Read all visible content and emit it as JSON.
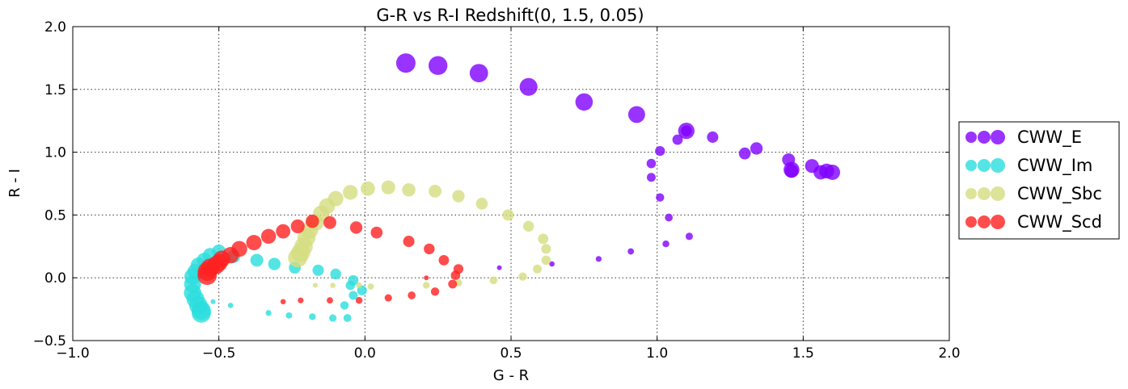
{
  "chart_data": {
    "type": "scatter",
    "title": "G-R vs R-I    Redshift(0, 1.5, 0.05)",
    "xlabel": "G - R",
    "ylabel": "R - I",
    "xlim": [
      -1.0,
      2.0
    ],
    "ylim": [
      -0.5,
      2.0
    ],
    "xticks": [
      -1.0,
      -0.5,
      0.0,
      0.5,
      1.0,
      1.5,
      2.0
    ],
    "yticks": [
      -0.5,
      0.0,
      0.5,
      1.0,
      1.5,
      2.0
    ],
    "xtick_labels": [
      "−1.0",
      "−0.5",
      "0.0",
      "0.5",
      "1.0",
      "1.5",
      "2.0"
    ],
    "ytick_labels": [
      "−0.5",
      "0.0",
      "0.5",
      "1.0",
      "1.5",
      "2.0"
    ],
    "grid": true,
    "legend_position": "outside-right",
    "marker_size_encodes": "redshift (0 to 1.5, step 0.05)",
    "redshift": [
      0.0,
      0.05,
      0.1,
      0.15,
      0.2,
      0.25,
      0.3,
      0.35,
      0.4,
      0.45,
      0.5,
      0.55,
      0.6,
      0.65,
      0.7,
      0.75,
      0.8,
      0.85,
      0.9,
      0.95,
      1.0,
      1.05,
      1.1,
      1.15,
      1.2,
      1.25,
      1.3,
      1.35,
      1.4,
      1.45
    ],
    "series": [
      {
        "name": "CWW_E",
        "color": "#8000ff",
        "x": [
          0.46,
          0.64,
          0.8,
          0.91,
          1.03,
          1.11,
          1.04,
          1.01,
          0.98,
          0.98,
          1.01,
          1.07,
          1.1,
          1.19,
          1.3,
          1.34,
          1.45,
          1.46,
          1.53,
          1.56,
          1.58,
          1.6,
          1.46,
          1.1,
          0.93,
          0.75,
          0.56,
          0.39,
          0.25,
          0.14
        ],
        "y": [
          0.08,
          0.11,
          0.15,
          0.21,
          0.27,
          0.33,
          0.48,
          0.64,
          0.8,
          0.91,
          1.01,
          1.1,
          1.17,
          1.12,
          0.99,
          1.03,
          0.94,
          0.85,
          0.89,
          0.84,
          0.85,
          0.84,
          0.86,
          1.17,
          1.3,
          1.4,
          1.52,
          1.63,
          1.69,
          1.71
        ]
      },
      {
        "name": "CWW_Im",
        "color": "#2adddd",
        "x": [
          -0.52,
          -0.46,
          -0.33,
          -0.26,
          -0.18,
          -0.11,
          -0.06,
          -0.07,
          -0.04,
          -0.05,
          -0.01,
          -0.04,
          -0.1,
          -0.16,
          -0.24,
          -0.31,
          -0.37,
          -0.45,
          -0.5,
          -0.53,
          -0.55,
          -0.57,
          -0.58,
          -0.59,
          -0.59,
          -0.59,
          -0.58,
          -0.57,
          -0.56,
          -0.56
        ],
        "y": [
          -0.19,
          -0.22,
          -0.28,
          -0.3,
          -0.31,
          -0.32,
          -0.32,
          -0.22,
          -0.14,
          -0.06,
          -0.1,
          -0.02,
          0.03,
          0.06,
          0.08,
          0.11,
          0.14,
          0.17,
          0.21,
          0.18,
          0.14,
          0.1,
          0.05,
          0.01,
          -0.05,
          -0.12,
          -0.17,
          -0.22,
          -0.26,
          -0.28
        ]
      },
      {
        "name": "CWW_Sbc",
        "color": "#d4dd80",
        "x": [
          -0.17,
          -0.11,
          -0.02,
          0.02,
          0.21,
          0.32,
          0.44,
          0.54,
          0.59,
          0.62,
          0.62,
          0.61,
          0.56,
          0.49,
          0.4,
          0.32,
          0.24,
          0.15,
          0.08,
          0.01,
          -0.05,
          -0.1,
          -0.13,
          -0.15,
          -0.17,
          -0.19,
          -0.2,
          -0.21,
          -0.22,
          -0.23
        ],
        "y": [
          -0.06,
          -0.06,
          -0.06,
          -0.07,
          -0.06,
          -0.04,
          -0.02,
          0.01,
          0.07,
          0.14,
          0.23,
          0.31,
          0.41,
          0.5,
          0.59,
          0.65,
          0.69,
          0.7,
          0.72,
          0.71,
          0.68,
          0.63,
          0.57,
          0.51,
          0.44,
          0.38,
          0.32,
          0.25,
          0.2,
          0.16
        ]
      },
      {
        "name": "CWW_Scd",
        "color": "#ff2020",
        "x": [
          0.21,
          -0.28,
          -0.22,
          -0.12,
          -0.02,
          0.08,
          0.16,
          0.24,
          0.3,
          0.31,
          0.32,
          0.27,
          0.22,
          0.15,
          0.04,
          -0.03,
          -0.12,
          -0.18,
          -0.23,
          -0.28,
          -0.33,
          -0.38,
          -0.43,
          -0.46,
          -0.49,
          -0.5,
          -0.51,
          -0.53,
          -0.54,
          -0.54
        ],
        "y": [
          0.0,
          -0.19,
          -0.18,
          -0.18,
          -0.18,
          -0.16,
          -0.14,
          -0.11,
          -0.05,
          0.02,
          0.07,
          0.14,
          0.23,
          0.29,
          0.36,
          0.4,
          0.44,
          0.45,
          0.41,
          0.37,
          0.33,
          0.28,
          0.23,
          0.18,
          0.15,
          0.12,
          0.1,
          0.08,
          0.05,
          0.02
        ]
      }
    ]
  }
}
